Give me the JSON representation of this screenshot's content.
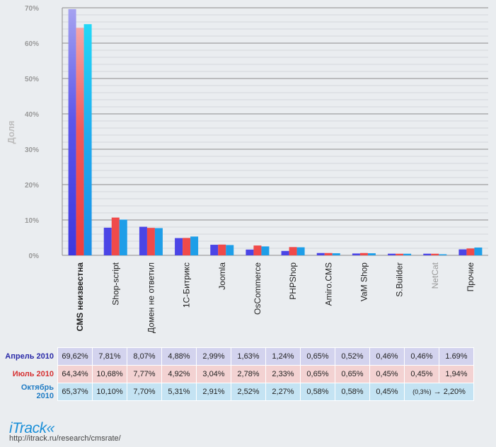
{
  "chart_data": {
    "type": "bar",
    "ylabel": "Доля",
    "ylim": [
      0,
      70
    ],
    "yticks": [
      "0%",
      "10%",
      "20%",
      "30%",
      "40%",
      "50%",
      "60%",
      "70%"
    ],
    "categories": [
      "CMS неизвестна",
      "Shop-script",
      "Домен не ответил",
      "1С-Битрикс",
      "Joomla",
      "OsCommerce",
      "PHPShop",
      "Amiro.CMS",
      "VaM Shop",
      "S.Builder",
      "NetCat",
      "Прочие"
    ],
    "series": [
      {
        "name": "Апрель 2010",
        "color": "#4b45e6",
        "values": [
          69.62,
          7.81,
          8.07,
          4.88,
          2.99,
          1.63,
          1.24,
          0.65,
          0.52,
          0.46,
          0.46,
          1.69
        ]
      },
      {
        "name": "Июль 2010",
        "color": "#f04a4a",
        "values": [
          64.34,
          10.68,
          7.77,
          4.92,
          3.04,
          2.78,
          2.33,
          0.65,
          0.65,
          0.45,
          0.45,
          1.94
        ]
      },
      {
        "name": "Октябрь 2010",
        "color": "#1e9ee8",
        "values": [
          65.37,
          10.1,
          7.7,
          5.31,
          2.91,
          2.52,
          2.27,
          0.58,
          0.58,
          0.45,
          0.3,
          2.2
        ]
      }
    ]
  },
  "table": {
    "rows": [
      {
        "label": "Апрель 2010",
        "label_color": "#2a2aa8",
        "bg": "#d3d3ee",
        "cells": [
          "69,62%",
          "7,81%",
          "8,07%",
          "4,88%",
          "2,99%",
          "1,63%",
          "1,24%",
          "0,65%",
          "0,52%",
          "0,46%",
          "0,46%",
          "1.69%"
        ]
      },
      {
        "label": "Июль 2010",
        "label_color": "#d63232",
        "bg": "#f3d2d2",
        "cells": [
          "64,34%",
          "10,68%",
          "7,77%",
          "4,92%",
          "3,04%",
          "2,78%",
          "2,33%",
          "0,65%",
          "0,65%",
          "0,45%",
          "0,45%",
          "1,94%"
        ]
      },
      {
        "label": "Октябрь 2010",
        "label_color": "#1f7cc4",
        "bg": "#c4e3f3",
        "cells": [
          "65,37%",
          "10,10%",
          "7,70%",
          "5,31%",
          "2,91%",
          "2,52%",
          "2,27%",
          "0,58%",
          "0,58%",
          "0,45%"
        ],
        "netcat_note": "(0,3%)",
        "arrow": "→",
        "last": "2,20%"
      }
    ]
  },
  "footer": {
    "logo": "iTrack«",
    "url": "http://itrack.ru/research/cmsrate/"
  }
}
